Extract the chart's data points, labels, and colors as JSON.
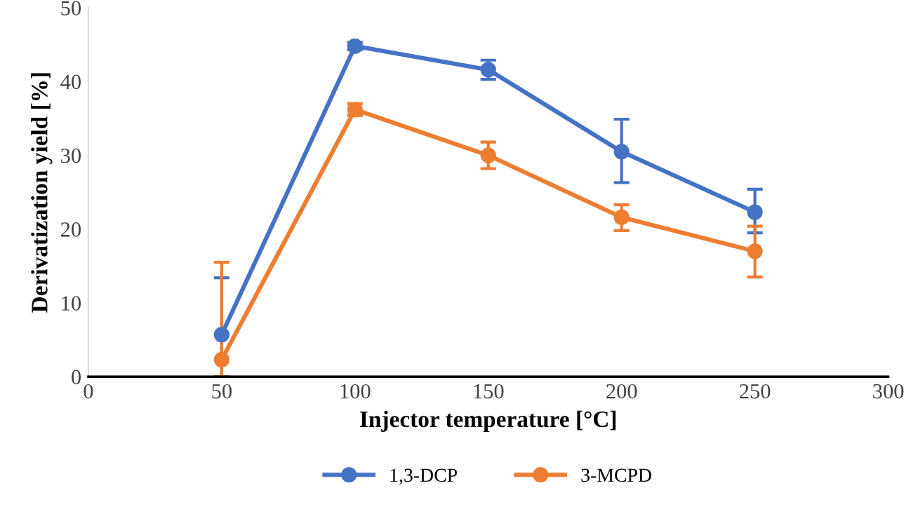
{
  "chart_data": {
    "type": "line",
    "xlabel": "Injector temperature [°C]",
    "ylabel": "Derivatization yield [%]",
    "x": [
      50,
      100,
      150,
      200,
      250
    ],
    "series": [
      {
        "name": "1,3-DCP",
        "color": "#4472c4",
        "values": [
          5.7,
          44.8,
          41.6,
          30.5,
          22.3
        ],
        "errors": [
          [
            0,
            13.4
          ],
          [
            44.3,
            45.3
          ],
          [
            40.3,
            42.9
          ],
          [
            26.3,
            34.9
          ],
          [
            19.5,
            25.4
          ]
        ]
      },
      {
        "name": "3-MCPD",
        "color": "#ed7d31",
        "values": [
          2.3,
          36.2,
          30.0,
          21.6,
          17.0
        ],
        "errors": [
          [
            0,
            15.5
          ],
          [
            35.4,
            37.0
          ],
          [
            28.2,
            31.8
          ],
          [
            19.8,
            23.3
          ],
          [
            13.5,
            20.4
          ]
        ]
      }
    ],
    "xlim": [
      0,
      300
    ],
    "xticks": [
      0,
      50,
      100,
      150,
      200,
      250,
      300
    ],
    "ylim": [
      0,
      50
    ],
    "yticks": [
      0,
      10,
      20,
      30,
      40,
      50
    ],
    "grid": false,
    "legend": "bottom",
    "marker": "circle",
    "line_style": "solid"
  }
}
